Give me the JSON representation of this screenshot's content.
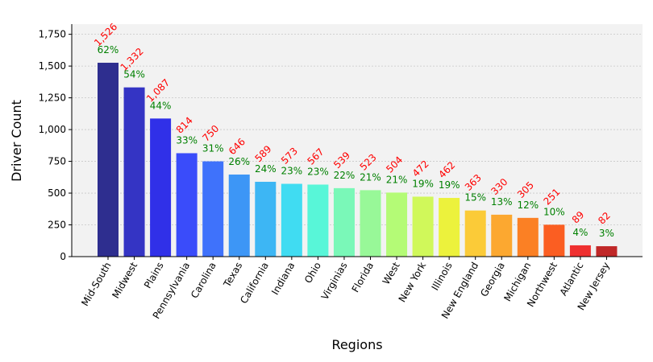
{
  "chart_data": {
    "type": "bar",
    "title": "",
    "xlabel": "Regions",
    "ylabel": "Driver Count",
    "ylim": [
      0,
      1830
    ],
    "yticks": [
      0,
      250,
      500,
      750,
      1000,
      1250,
      1500,
      1750
    ],
    "ytick_labels": [
      "0",
      "250",
      "500",
      "750",
      "1,000",
      "1,250",
      "1,500",
      "1,750"
    ],
    "grid": true,
    "plot_background": "#f2f2f2",
    "categories": [
      "Mid-South",
      "Midwest",
      "Plains",
      "Pennsylvania",
      "Carolina",
      "Texas",
      "California",
      "Indiana",
      "Ohio",
      "Virginias",
      "Florida",
      "West",
      "New York",
      "Illinois",
      "New England",
      "Georgia",
      "Michigan",
      "Northwest",
      "Atlantic",
      "New Jersey"
    ],
    "values": [
      1526,
      1332,
      1087,
      814,
      750,
      646,
      589,
      573,
      567,
      539,
      523,
      504,
      472,
      462,
      363,
      330,
      305,
      251,
      89,
      82
    ],
    "value_labels": [
      "1,526",
      "1,332",
      "1,087",
      "814",
      "750",
      "646",
      "589",
      "573",
      "567",
      "539",
      "523",
      "504",
      "472",
      "462",
      "363",
      "330",
      "305",
      "251",
      "89",
      "82"
    ],
    "percent_labels": [
      "62%",
      "54%",
      "44%",
      "33%",
      "31%",
      "26%",
      "24%",
      "23%",
      "23%",
      "22%",
      "21%",
      "21%",
      "19%",
      "19%",
      "15%",
      "13%",
      "12%",
      "10%",
      "4%",
      "3%"
    ],
    "colors": [
      "#2e2e8f",
      "#3434c4",
      "#3030e8",
      "#3a4cfa",
      "#3f72fb",
      "#3d96f6",
      "#3db6f4",
      "#40dcf2",
      "#58f6d8",
      "#7af8b8",
      "#98f898",
      "#b4fb76",
      "#d0f85a",
      "#ecf23c",
      "#fbcb38",
      "#fca830",
      "#fb8024",
      "#fb5e22",
      "#ef3030",
      "#c02828"
    ],
    "value_label_color": "#ff0000",
    "percent_label_color": "#008000"
  }
}
